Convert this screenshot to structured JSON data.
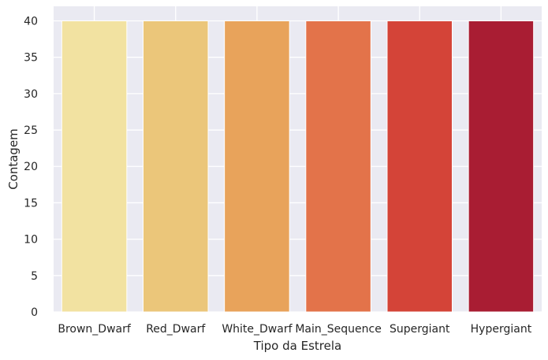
{
  "chart_data": {
    "type": "bar",
    "xlabel": "Tipo da Estrela",
    "ylabel": "Contagem",
    "categories": [
      "Brown_Dwarf",
      "Red_Dwarf",
      "White_Dwarf",
      "Main_Sequence",
      "Supergiant",
      "Hypergiant"
    ],
    "values": [
      40,
      40,
      40,
      40,
      40,
      40
    ],
    "colors": [
      "#f2e2a1",
      "#ebc67a",
      "#e8a35b",
      "#e3734a",
      "#d44438",
      "#a91d33"
    ],
    "ylim": [
      0,
      42
    ],
    "yticks": [
      0,
      5,
      10,
      15,
      20,
      25,
      30,
      35,
      40
    ],
    "grid": true,
    "background": "#eaeaf2"
  }
}
